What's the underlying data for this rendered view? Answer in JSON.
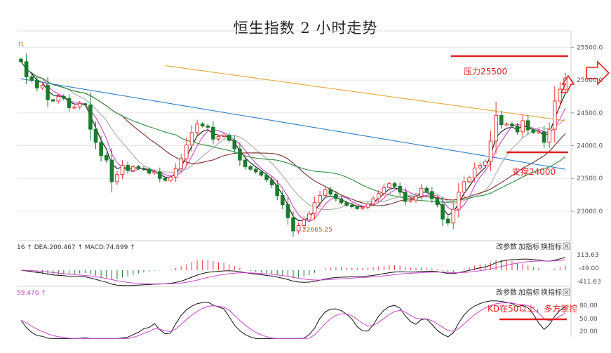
{
  "title": "恒生指数 2 小时走势",
  "colors": {
    "up": "#e23a3a",
    "down": "#1c7a2c",
    "grid": "#e8e8e8",
    "annotation": "#e02020"
  },
  "chart_data": {
    "type": "candlestick",
    "title": "恒生指数 2 小时走势",
    "main": {
      "ylim": [
        22550,
        25750
      ],
      "yticks": [
        "25500.0",
        "25000.0",
        "24500.0",
        "24000.0",
        "23500.0",
        "23000.0"
      ],
      "ytick_values": [
        25500,
        25000,
        24500,
        24000,
        23500,
        23000
      ],
      "corner_label": "f1",
      "low_label": "22665.25",
      "closes": [
        25280,
        25050,
        25000,
        24880,
        24920,
        24700,
        24680,
        24750,
        24720,
        24580,
        24590,
        24640,
        24620,
        24250,
        24050,
        23850,
        23780,
        23450,
        23560,
        23700,
        23620,
        23680,
        23650,
        23640,
        23580,
        23600,
        23500,
        23470,
        23520,
        23650,
        23800,
        24010,
        24200,
        24330,
        24300,
        24280,
        24100,
        24140,
        24160,
        24080,
        23950,
        23780,
        23680,
        23640,
        23600,
        23550,
        23480,
        23400,
        23240,
        23100,
        22900,
        22700,
        22780,
        22870,
        22960,
        23130,
        23240,
        23330,
        23260,
        23190,
        23130,
        23090,
        23070,
        23040,
        23060,
        23110,
        23190,
        23270,
        23360,
        23420,
        23380,
        23290,
        23150,
        23170,
        23230,
        23350,
        23300,
        23190,
        23100,
        22880,
        22820,
        23030,
        23290,
        23450,
        23510,
        23660,
        23700,
        23760,
        24070,
        24460,
        24320,
        24330,
        24300,
        24210,
        24380,
        24240,
        24200,
        24210,
        24050,
        24250,
        24680,
        24860,
        25030
      ]
    },
    "indicators": {
      "ma_colors": [
        "#111111",
        "#cc44cc",
        "#aaaaaa",
        "#7a2a2a",
        "#2e8b3c",
        "#2f7ec6",
        "#e3a83a"
      ]
    },
    "macd": {
      "label": "16 ↑ DEA:200.467 ↑ MACD:74.899 ↑",
      "yticks": [
        "313.63",
        "-49.00",
        "-411.63"
      ],
      "controls": [
        "改参数",
        "加指标",
        "换指标"
      ]
    },
    "kdj": {
      "label": "59.470 ↑",
      "yticks": [
        "80.00",
        "50.00",
        "20.00"
      ],
      "controls": [
        "改参数",
        "加指标",
        "换指标"
      ]
    },
    "annotations": [
      {
        "text": "压力25500",
        "value": 25500
      },
      {
        "text": "支撑24000",
        "value": 24000
      },
      {
        "text": "KD在50以上，多方掌控",
        "value": 50
      }
    ]
  }
}
